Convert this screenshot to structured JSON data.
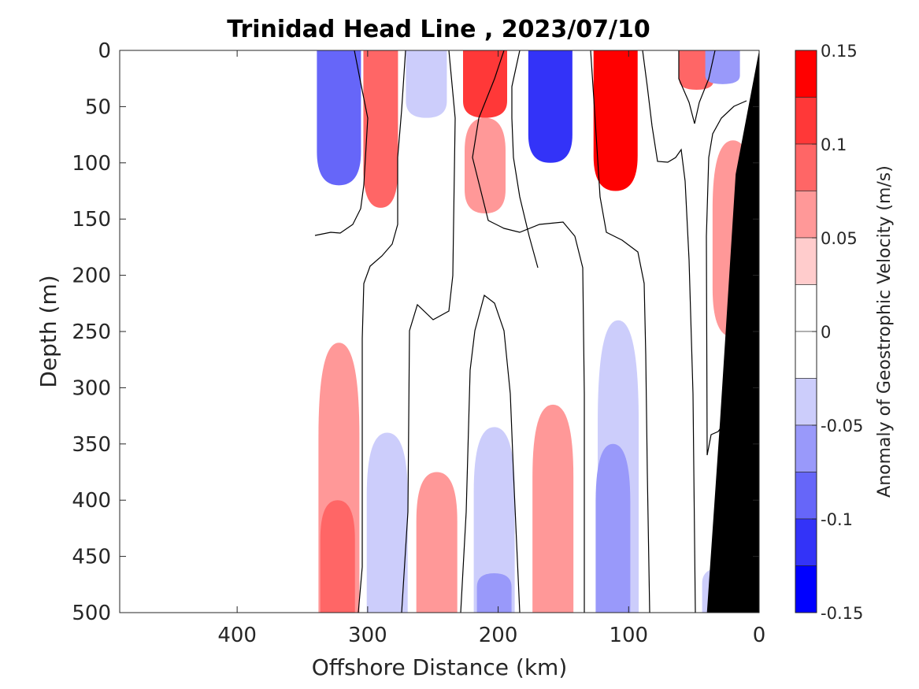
{
  "chart_data": {
    "type": "heatmap",
    "title": "Trinidad Head Line , 2023/07/10",
    "xlabel": "Offshore Distance (km)",
    "ylabel": "Depth (m)",
    "xlim": [
      490,
      0
    ],
    "ylim": [
      0,
      500
    ],
    "x_ticks": [
      "400",
      "300",
      "200",
      "100",
      "0"
    ],
    "y_ticks": [
      "0",
      "50",
      "100",
      "150",
      "200",
      "250",
      "300",
      "350",
      "400",
      "450",
      "500"
    ],
    "colorbar": {
      "label": "Anomaly of Geostrophic Velocity (m/s)",
      "range": [
        -0.15,
        0.15
      ],
      "tick_labels": [
        "0.15",
        "0.1",
        "0.05",
        "0",
        "-0.05",
        "-0.1",
        "-0.15"
      ],
      "levels": [
        0.15,
        0.125,
        0.1,
        0.075,
        0.05,
        0.025,
        0,
        -0.025,
        -0.05,
        -0.075,
        -0.1,
        -0.125,
        -0.15
      ],
      "colors": [
        "#ff0000",
        "#ff3838",
        "#ff6666",
        "#ff9898",
        "#ffcccc",
        "#ffffff",
        "#ffffff",
        "#cccdfb",
        "#9999fa",
        "#6666f9",
        "#3333f8",
        "#0000ff"
      ]
    },
    "data_extent_km": 340,
    "features": [
      {
        "center_km": 322,
        "depth": [
          0,
          120
        ],
        "value": -0.1
      },
      {
        "center_km": 290,
        "depth": [
          0,
          140
        ],
        "value": 0.075
      },
      {
        "center_km": 255,
        "depth": [
          0,
          60
        ],
        "value": -0.05
      },
      {
        "center_km": 255,
        "depth": [
          75,
          140
        ],
        "value": -0.025
      },
      {
        "center_km": 210,
        "depth": [
          0,
          60
        ],
        "value": 0.1
      },
      {
        "center_km": 210,
        "depth": [
          60,
          145
        ],
        "value": 0.05
      },
      {
        "center_km": 160,
        "depth": [
          0,
          100
        ],
        "value": -0.125
      },
      {
        "center_km": 110,
        "depth": [
          0,
          125
        ],
        "value": 0.15
      },
      {
        "center_km": 70,
        "depth": [
          0,
          60
        ],
        "value": -0.025
      },
      {
        "center_km": 48,
        "depth": [
          0,
          35
        ],
        "value": 0.075
      },
      {
        "center_km": 28,
        "depth": [
          0,
          30
        ],
        "value": -0.075
      },
      {
        "center_km": 20,
        "depth": [
          80,
          255
        ],
        "value": 0.05
      },
      {
        "center_km": 322,
        "depth": [
          260,
          500
        ],
        "value": 0.05
      },
      {
        "center_km": 323,
        "depth": [
          400,
          500
        ],
        "value": 0.075
      },
      {
        "center_km": 285,
        "depth": [
          340,
          500
        ],
        "value": -0.05
      },
      {
        "center_km": 247,
        "depth": [
          375,
          500
        ],
        "value": 0.05
      },
      {
        "center_km": 203,
        "depth": [
          335,
          500
        ],
        "value": -0.05
      },
      {
        "center_km": 203,
        "depth": [
          465,
          500
        ],
        "value": -0.075
      },
      {
        "center_km": 158,
        "depth": [
          315,
          500
        ],
        "value": 0.05
      },
      {
        "center_km": 108,
        "depth": [
          240,
          500
        ],
        "value": -0.05
      },
      {
        "center_km": 112,
        "depth": [
          350,
          500
        ],
        "value": -0.075
      },
      {
        "center_km": 28,
        "depth": [
          460,
          500
        ],
        "value": -0.05
      }
    ],
    "bathymetry": [
      [
        0,
        0
      ],
      [
        18,
        110
      ],
      [
        30,
        330
      ],
      [
        40,
        500
      ]
    ]
  }
}
